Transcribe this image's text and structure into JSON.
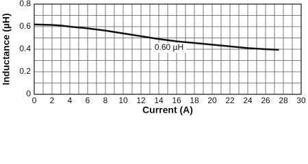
{
  "chart_data": {
    "type": "line",
    "x_label": "Current (A)",
    "y_label": "Inductance (µH)",
    "annotation": "0.60 µH",
    "x": [
      0,
      2,
      3,
      4,
      6,
      8,
      10,
      12,
      14,
      16,
      18,
      20,
      22,
      24,
      26,
      27.5
    ],
    "series": [
      {
        "name": "0.60 µH",
        "color": "#111111",
        "values": [
          0.62,
          0.615,
          0.61,
          0.6,
          0.585,
          0.565,
          0.54,
          0.515,
          0.49,
          0.47,
          0.455,
          0.44,
          0.425,
          0.41,
          0.4,
          0.395
        ]
      }
    ],
    "xlim": [
      0,
      30
    ],
    "xticks": [
      0,
      2,
      4,
      6,
      8,
      10,
      12,
      14,
      16,
      18,
      20,
      22,
      24,
      26,
      28,
      30
    ],
    "ylim": [
      0,
      0.8
    ],
    "yticks": [
      0,
      0.2,
      0.4,
      0.6,
      0.8
    ],
    "grid": true,
    "minor_grid": true
  }
}
